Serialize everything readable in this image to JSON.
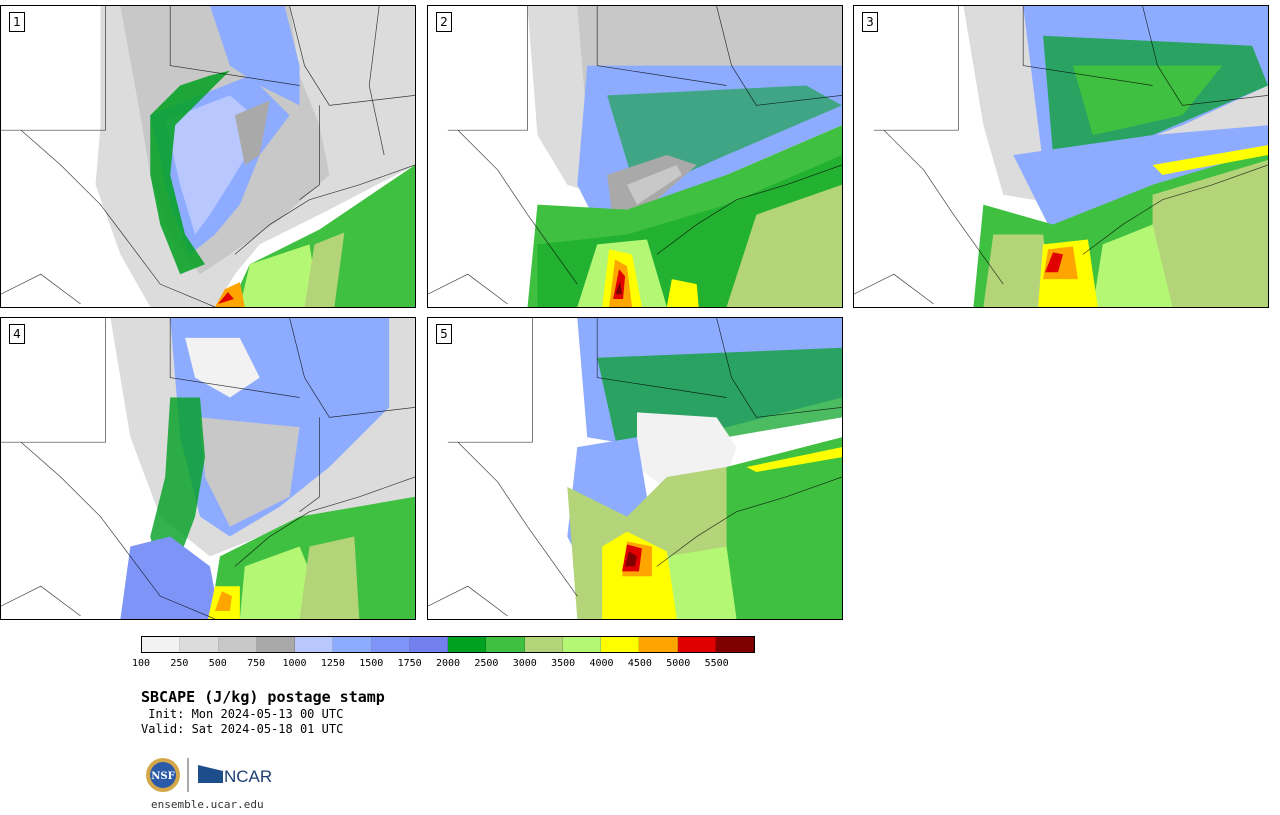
{
  "panels": [
    {
      "label": "1"
    },
    {
      "label": "2"
    },
    {
      "label": "3"
    },
    {
      "label": "4"
    },
    {
      "label": "5"
    }
  ],
  "legend": {
    "colors": [
      "#f2f2f2",
      "#dcdcdc",
      "#c8c8c8",
      "#a9a9a9",
      "#b8c8ff",
      "#8eacff",
      "#7e94f6",
      "#7580ef",
      "#00a020",
      "#40c040",
      "#b4d47a",
      "#b4f774",
      "#ffff00",
      "#ffa500",
      "#e00000",
      "#800000"
    ],
    "ticks": [
      "100",
      "250",
      "500",
      "750",
      "1000",
      "1250",
      "1500",
      "1750",
      "2000",
      "2500",
      "3000",
      "3500",
      "4000",
      "4500",
      "5000",
      "5500"
    ]
  },
  "title": "SBCAPE (J/kg) postage stamp",
  "init_text": " Init: Mon 2024-05-13 00 UTC",
  "valid_text": "Valid: Sat 2024-05-18 01 UTC",
  "logo": {
    "nsf_text": "NSF",
    "ncar_text": "NCAR"
  },
  "url": "ensemble.ucar.edu"
}
